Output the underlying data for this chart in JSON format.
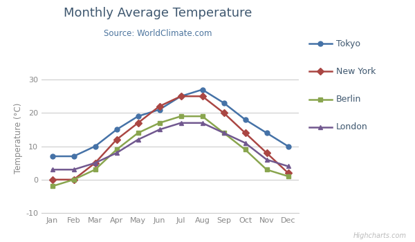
{
  "title": "Monthly Average Temperature",
  "subtitle": "Source: WorldClimate.com",
  "ylabel": "Temperature (°C)",
  "months": [
    "Jan",
    "Feb",
    "Mar",
    "Apr",
    "May",
    "Jun",
    "Jul",
    "Aug",
    "Sep",
    "Oct",
    "Nov",
    "Dec"
  ],
  "series": [
    {
      "name": "Tokyo",
      "color": "#4572A7",
      "marker": "o",
      "data": [
        7,
        7,
        10,
        15,
        19,
        21,
        25,
        27,
        23,
        18,
        14,
        10
      ]
    },
    {
      "name": "New York",
      "color": "#AA4643",
      "marker": "D",
      "data": [
        0,
        0,
        5,
        12,
        17,
        22,
        25,
        25,
        20,
        14,
        8,
        2
      ]
    },
    {
      "name": "Berlin",
      "color": "#89A54E",
      "marker": "s",
      "data": [
        -2,
        0,
        3,
        9,
        14,
        17,
        19,
        19,
        14,
        9,
        3,
        1
      ]
    },
    {
      "name": "London",
      "color": "#71588F",
      "marker": "^",
      "data": [
        3,
        3,
        5,
        8,
        12,
        15,
        17,
        17,
        14,
        11,
        6,
        4
      ]
    }
  ],
  "ylim": [
    -10,
    35
  ],
  "yticks": [
    -10,
    0,
    10,
    20,
    30
  ],
  "bg_color": "#FFFFFF",
  "grid_color": "#CCCCCC",
  "title_color": "#3E576F",
  "subtitle_color": "#4D759E",
  "tick_color": "#888888",
  "watermark": "Highcharts.com",
  "watermark_color": "#BBBBBB",
  "legend_text_color": "#3E576F",
  "marker_size": 5,
  "line_width": 1.8
}
